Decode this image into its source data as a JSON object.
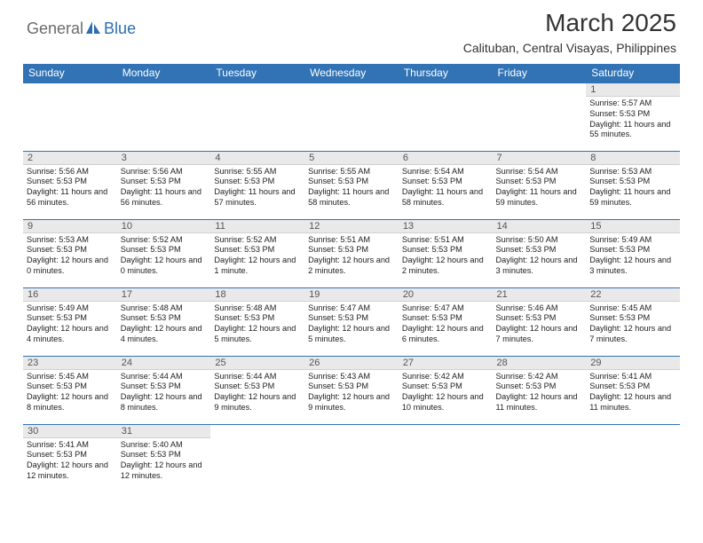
{
  "logo": {
    "text1": "General",
    "text2": "Blue",
    "color_gray": "#6b6b6b",
    "color_blue": "#2b6fb0"
  },
  "title": "March 2025",
  "location": "Calituban, Central Visayas, Philippines",
  "header_bg": "#3173b5",
  "header_fg": "#ffffff",
  "row_sep_color": "#3173b5",
  "daynum_bg": "#e9e9e9",
  "text_color": "#222222",
  "columns": [
    "Sunday",
    "Monday",
    "Tuesday",
    "Wednesday",
    "Thursday",
    "Friday",
    "Saturday"
  ],
  "weeks": [
    [
      null,
      null,
      null,
      null,
      null,
      null,
      {
        "n": "1",
        "sr": "Sunrise: 5:57 AM",
        "ss": "Sunset: 5:53 PM",
        "dl": "Daylight: 11 hours and 55 minutes."
      }
    ],
    [
      {
        "n": "2",
        "sr": "Sunrise: 5:56 AM",
        "ss": "Sunset: 5:53 PM",
        "dl": "Daylight: 11 hours and 56 minutes."
      },
      {
        "n": "3",
        "sr": "Sunrise: 5:56 AM",
        "ss": "Sunset: 5:53 PM",
        "dl": "Daylight: 11 hours and 56 minutes."
      },
      {
        "n": "4",
        "sr": "Sunrise: 5:55 AM",
        "ss": "Sunset: 5:53 PM",
        "dl": "Daylight: 11 hours and 57 minutes."
      },
      {
        "n": "5",
        "sr": "Sunrise: 5:55 AM",
        "ss": "Sunset: 5:53 PM",
        "dl": "Daylight: 11 hours and 58 minutes."
      },
      {
        "n": "6",
        "sr": "Sunrise: 5:54 AM",
        "ss": "Sunset: 5:53 PM",
        "dl": "Daylight: 11 hours and 58 minutes."
      },
      {
        "n": "7",
        "sr": "Sunrise: 5:54 AM",
        "ss": "Sunset: 5:53 PM",
        "dl": "Daylight: 11 hours and 59 minutes."
      },
      {
        "n": "8",
        "sr": "Sunrise: 5:53 AM",
        "ss": "Sunset: 5:53 PM",
        "dl": "Daylight: 11 hours and 59 minutes."
      }
    ],
    [
      {
        "n": "9",
        "sr": "Sunrise: 5:53 AM",
        "ss": "Sunset: 5:53 PM",
        "dl": "Daylight: 12 hours and 0 minutes."
      },
      {
        "n": "10",
        "sr": "Sunrise: 5:52 AM",
        "ss": "Sunset: 5:53 PM",
        "dl": "Daylight: 12 hours and 0 minutes."
      },
      {
        "n": "11",
        "sr": "Sunrise: 5:52 AM",
        "ss": "Sunset: 5:53 PM",
        "dl": "Daylight: 12 hours and 1 minute."
      },
      {
        "n": "12",
        "sr": "Sunrise: 5:51 AM",
        "ss": "Sunset: 5:53 PM",
        "dl": "Daylight: 12 hours and 2 minutes."
      },
      {
        "n": "13",
        "sr": "Sunrise: 5:51 AM",
        "ss": "Sunset: 5:53 PM",
        "dl": "Daylight: 12 hours and 2 minutes."
      },
      {
        "n": "14",
        "sr": "Sunrise: 5:50 AM",
        "ss": "Sunset: 5:53 PM",
        "dl": "Daylight: 12 hours and 3 minutes."
      },
      {
        "n": "15",
        "sr": "Sunrise: 5:49 AM",
        "ss": "Sunset: 5:53 PM",
        "dl": "Daylight: 12 hours and 3 minutes."
      }
    ],
    [
      {
        "n": "16",
        "sr": "Sunrise: 5:49 AM",
        "ss": "Sunset: 5:53 PM",
        "dl": "Daylight: 12 hours and 4 minutes."
      },
      {
        "n": "17",
        "sr": "Sunrise: 5:48 AM",
        "ss": "Sunset: 5:53 PM",
        "dl": "Daylight: 12 hours and 4 minutes."
      },
      {
        "n": "18",
        "sr": "Sunrise: 5:48 AM",
        "ss": "Sunset: 5:53 PM",
        "dl": "Daylight: 12 hours and 5 minutes."
      },
      {
        "n": "19",
        "sr": "Sunrise: 5:47 AM",
        "ss": "Sunset: 5:53 PM",
        "dl": "Daylight: 12 hours and 5 minutes."
      },
      {
        "n": "20",
        "sr": "Sunrise: 5:47 AM",
        "ss": "Sunset: 5:53 PM",
        "dl": "Daylight: 12 hours and 6 minutes."
      },
      {
        "n": "21",
        "sr": "Sunrise: 5:46 AM",
        "ss": "Sunset: 5:53 PM",
        "dl": "Daylight: 12 hours and 7 minutes."
      },
      {
        "n": "22",
        "sr": "Sunrise: 5:45 AM",
        "ss": "Sunset: 5:53 PM",
        "dl": "Daylight: 12 hours and 7 minutes."
      }
    ],
    [
      {
        "n": "23",
        "sr": "Sunrise: 5:45 AM",
        "ss": "Sunset: 5:53 PM",
        "dl": "Daylight: 12 hours and 8 minutes."
      },
      {
        "n": "24",
        "sr": "Sunrise: 5:44 AM",
        "ss": "Sunset: 5:53 PM",
        "dl": "Daylight: 12 hours and 8 minutes."
      },
      {
        "n": "25",
        "sr": "Sunrise: 5:44 AM",
        "ss": "Sunset: 5:53 PM",
        "dl": "Daylight: 12 hours and 9 minutes."
      },
      {
        "n": "26",
        "sr": "Sunrise: 5:43 AM",
        "ss": "Sunset: 5:53 PM",
        "dl": "Daylight: 12 hours and 9 minutes."
      },
      {
        "n": "27",
        "sr": "Sunrise: 5:42 AM",
        "ss": "Sunset: 5:53 PM",
        "dl": "Daylight: 12 hours and 10 minutes."
      },
      {
        "n": "28",
        "sr": "Sunrise: 5:42 AM",
        "ss": "Sunset: 5:53 PM",
        "dl": "Daylight: 12 hours and 11 minutes."
      },
      {
        "n": "29",
        "sr": "Sunrise: 5:41 AM",
        "ss": "Sunset: 5:53 PM",
        "dl": "Daylight: 12 hours and 11 minutes."
      }
    ],
    [
      {
        "n": "30",
        "sr": "Sunrise: 5:41 AM",
        "ss": "Sunset: 5:53 PM",
        "dl": "Daylight: 12 hours and 12 minutes."
      },
      {
        "n": "31",
        "sr": "Sunrise: 5:40 AM",
        "ss": "Sunset: 5:53 PM",
        "dl": "Daylight: 12 hours and 12 minutes."
      },
      null,
      null,
      null,
      null,
      null
    ]
  ]
}
